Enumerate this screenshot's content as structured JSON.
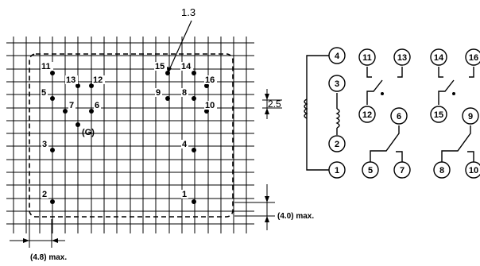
{
  "hole_diameter_label": "1.3",
  "pitch_label": "2.5",
  "height_label": "(4.0) max.",
  "width_label": "(4.8) max.",
  "ground_label": "(G)",
  "pcb_pins": [
    {
      "label": "11"
    },
    {
      "label": "13"
    },
    {
      "label": "12"
    },
    {
      "label": "5"
    },
    {
      "label": "7"
    },
    {
      "label": "6"
    },
    {
      "label": "3"
    },
    {
      "label": "2"
    },
    {
      "label": "15"
    },
    {
      "label": "14"
    },
    {
      "label": "16"
    },
    {
      "label": "9"
    },
    {
      "label": "8"
    },
    {
      "label": "10"
    },
    {
      "label": "4"
    },
    {
      "label": "1"
    }
  ],
  "schematic_terminals": [
    {
      "label": "4"
    },
    {
      "label": "3"
    },
    {
      "label": "2"
    },
    {
      "label": "1"
    },
    {
      "label": "11"
    },
    {
      "label": "13"
    },
    {
      "label": "12"
    },
    {
      "label": "6"
    },
    {
      "label": "5"
    },
    {
      "label": "7"
    },
    {
      "label": "14"
    },
    {
      "label": "16"
    },
    {
      "label": "15"
    },
    {
      "label": "9"
    },
    {
      "label": "8"
    },
    {
      "label": "10"
    }
  ]
}
